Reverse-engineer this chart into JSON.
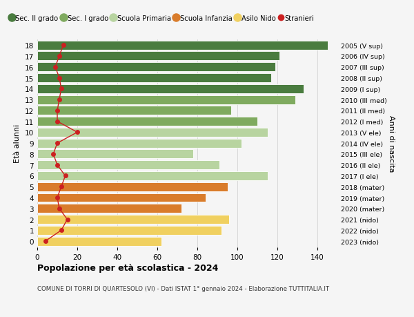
{
  "ages": [
    18,
    17,
    16,
    15,
    14,
    13,
    12,
    11,
    10,
    9,
    8,
    7,
    6,
    5,
    4,
    3,
    2,
    1,
    0
  ],
  "years": [
    "2005 (V sup)",
    "2006 (IV sup)",
    "2007 (III sup)",
    "2008 (II sup)",
    "2009 (I sup)",
    "2010 (III med)",
    "2011 (II med)",
    "2012 (I med)",
    "2013 (V ele)",
    "2014 (IV ele)",
    "2015 (III ele)",
    "2016 (II ele)",
    "2017 (I ele)",
    "2018 (mater)",
    "2019 (mater)",
    "2020 (mater)",
    "2021 (nido)",
    "2022 (nido)",
    "2023 (nido)"
  ],
  "bar_values": [
    145,
    121,
    119,
    117,
    133,
    129,
    97,
    110,
    115,
    102,
    78,
    91,
    115,
    95,
    84,
    72,
    96,
    92,
    62
  ],
  "bar_colors": [
    "#4a7c3f",
    "#4a7c3f",
    "#4a7c3f",
    "#4a7c3f",
    "#4a7c3f",
    "#7faa5f",
    "#7faa5f",
    "#7faa5f",
    "#b8d4a0",
    "#b8d4a0",
    "#b8d4a0",
    "#b8d4a0",
    "#b8d4a0",
    "#d97c2b",
    "#d97c2b",
    "#d97c2b",
    "#f0d060",
    "#f0d060",
    "#f0d060"
  ],
  "stranieri_values": [
    13,
    11,
    9,
    11,
    12,
    11,
    10,
    10,
    20,
    10,
    8,
    10,
    14,
    12,
    10,
    11,
    15,
    12,
    4
  ],
  "stranieri_color": "#cc2020",
  "legend_labels": [
    "Sec. II grado",
    "Sec. I grado",
    "Scuola Primaria",
    "Scuola Infanzia",
    "Asilo Nido",
    "Stranieri"
  ],
  "legend_colors": [
    "#4a7c3f",
    "#7faa5f",
    "#b8d4a0",
    "#d97c2b",
    "#f0d060",
    "#cc2020"
  ],
  "ylabel_left": "Età alunni",
  "ylabel_right": "Anni di nascita",
  "xlim": [
    0,
    150
  ],
  "xticks": [
    0,
    20,
    40,
    60,
    80,
    100,
    120,
    140
  ],
  "title": "Popolazione per età scolastica - 2024",
  "subtitle": "COMUNE DI TORRI DI QUARTESOLO (VI) - Dati ISTAT 1° gennaio 2024 - Elaborazione TUTTITALIA.IT",
  "bg_color": "#f5f5f5",
  "bar_height": 0.82,
  "grid_color": "#cccccc"
}
